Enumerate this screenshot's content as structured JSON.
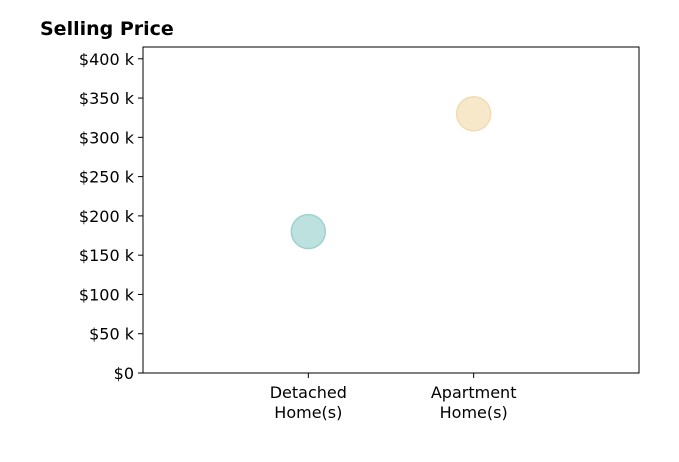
{
  "chart_data": {
    "type": "scatter",
    "title": "Selling Price",
    "xlabel": "",
    "ylabel": "",
    "categories": [
      [
        "Detached",
        "Home(s)"
      ],
      [
        "Apartment",
        "Home(s)"
      ]
    ],
    "y_ticks": [
      0,
      50000,
      100000,
      150000,
      200000,
      250000,
      300000,
      350000,
      400000
    ],
    "y_tick_labels": [
      "$0",
      "$50 k",
      "$100 k",
      "$150 k",
      "$200 k",
      "$250 k",
      "$300 k",
      "$350 k",
      "$400 k"
    ],
    "ylim": [
      0,
      415000
    ],
    "x_range": [
      -1,
      2
    ],
    "grid": false,
    "legend": "none",
    "points": [
      {
        "category": "Detached Home(s)",
        "x": 0,
        "y": 180000,
        "color": "#bde1df",
        "stroke": "#9fd2cf"
      },
      {
        "category": "Apartment Home(s)",
        "x": 1,
        "y": 330000,
        "color": "#f7e8ca",
        "stroke": "#f0dcb4"
      }
    ]
  }
}
